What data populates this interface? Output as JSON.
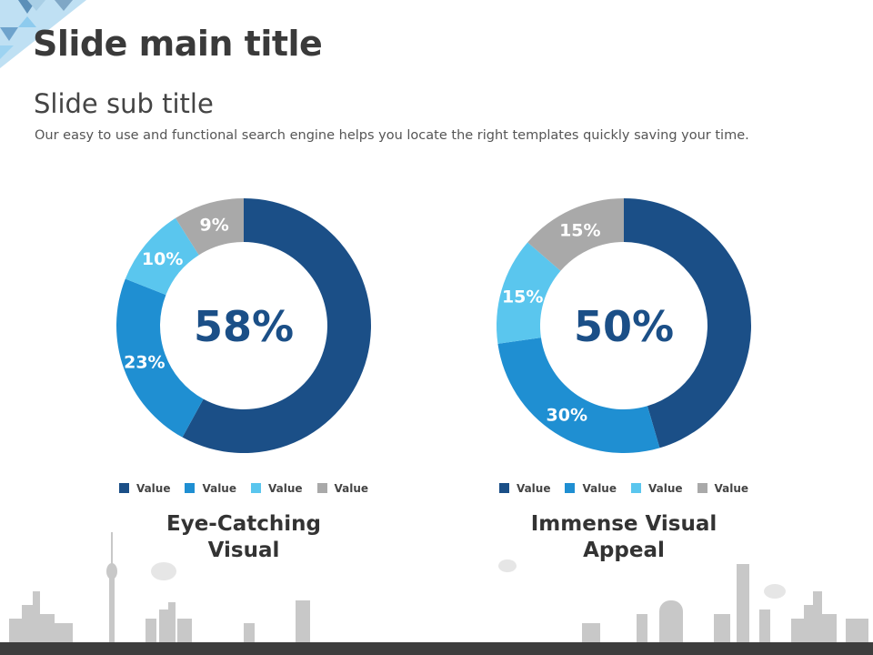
{
  "slide": {
    "title": "Slide main title",
    "subtitle": "Slide sub title",
    "description": "Our easy to use and functional search engine helps you locate the right templates quickly  saving your time."
  },
  "colors": [
    "#1b4f87",
    "#1f8fd2",
    "#5ac6ee",
    "#a9a9a9"
  ],
  "chart_data": [
    {
      "type": "pie",
      "variant": "donut",
      "center_label": "58%",
      "title": "Eye-Catching Visual",
      "title_lines": [
        "Eye-Catching",
        "Visual"
      ],
      "categories": [
        "Value",
        "Value",
        "Value",
        "Value"
      ],
      "values": [
        58,
        23,
        10,
        9
      ],
      "labels": [
        "58%",
        "23%",
        "10%",
        "9%"
      ]
    },
    {
      "type": "pie",
      "variant": "donut",
      "center_label": "50%",
      "title": "Immense Visual Appeal",
      "title_lines": [
        "Immense Visual",
        "Appeal"
      ],
      "categories": [
        "Value",
        "Value",
        "Value",
        "Value"
      ],
      "values": [
        50,
        30,
        15,
        15
      ],
      "labels": [
        "50%",
        "30%",
        "15%",
        "15%"
      ]
    }
  ]
}
